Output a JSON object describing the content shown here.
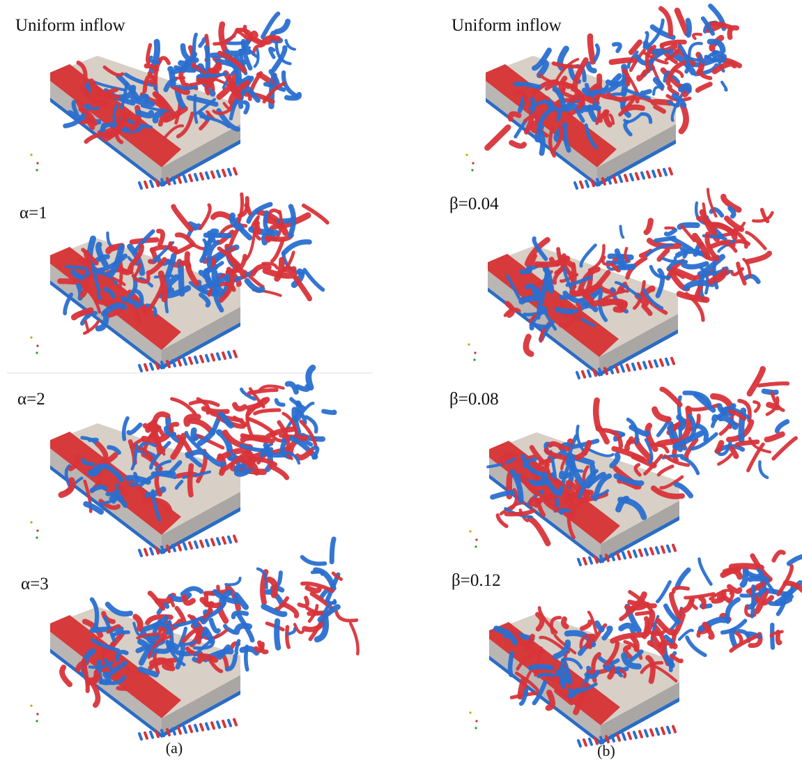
{
  "columns": [
    {
      "caption": "(a)",
      "panels": [
        "Uniform inflow",
        "α=1",
        "α=2",
        "α=3"
      ]
    },
    {
      "caption": "(b)",
      "panels": [
        "Uniform inflow",
        "β=0.04",
        "β=0.08",
        "β=0.12"
      ]
    }
  ]
}
